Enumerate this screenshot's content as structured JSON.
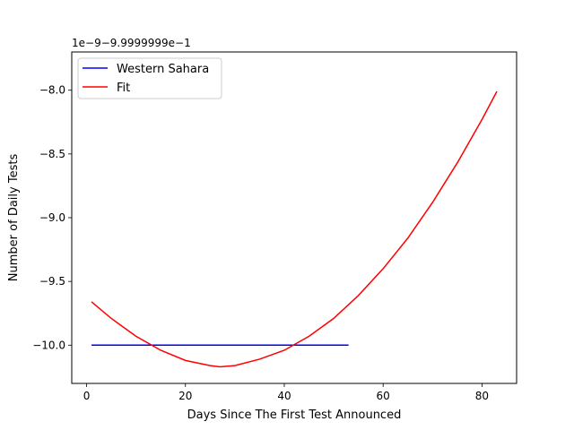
{
  "chart_data": {
    "type": "line",
    "title": "",
    "xlabel": "Days Since The First Test Announced",
    "ylabel": "Number of Daily Tests",
    "offset_label": "1e−9−9.9999999e−1",
    "xlim": [
      -3,
      87
    ],
    "ylim": [
      -10.3,
      -7.7
    ],
    "x_ticks": [
      0,
      20,
      40,
      60,
      80
    ],
    "x_tick_labels": [
      "0",
      "20",
      "40",
      "60",
      "80"
    ],
    "y_ticks": [
      -10.0,
      -9.5,
      -9.0,
      -8.5,
      -8.0
    ],
    "y_tick_labels": [
      "−10.0",
      "−9.5",
      "−9.0",
      "−8.5",
      "−8.0"
    ],
    "grid": false,
    "legend_position": "top-left",
    "series": [
      {
        "name": "Western Sahara",
        "color": "#0000ff",
        "x": [
          1,
          53
        ],
        "y": [
          -10.0,
          -10.0
        ]
      },
      {
        "name": "Fit",
        "color": "#ff0000",
        "x": [
          1,
          5,
          10,
          15,
          20,
          25,
          27,
          30,
          35,
          40,
          45,
          50,
          55,
          60,
          65,
          70,
          75,
          80,
          83
        ],
        "y": [
          -9.66,
          -9.79,
          -9.93,
          -10.04,
          -10.12,
          -10.16,
          -10.17,
          -10.16,
          -10.11,
          -10.04,
          -9.93,
          -9.79,
          -9.61,
          -9.4,
          -9.16,
          -8.88,
          -8.57,
          -8.23,
          -8.01
        ]
      }
    ]
  }
}
